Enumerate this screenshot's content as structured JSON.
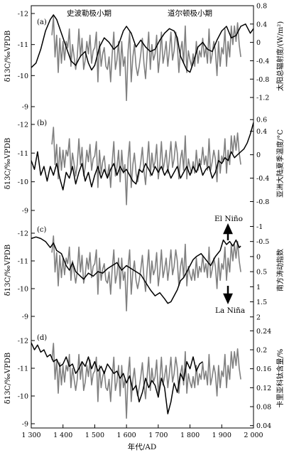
{
  "chart_data": {
    "type": "line",
    "xlabel": "年代/AD",
    "xlim": [
      1300,
      2000
    ],
    "xticks": [
      "1 300",
      "1 400",
      "1 500",
      "1 600",
      "1 700",
      "1 800",
      "1 900",
      "2 000"
    ],
    "grid": false,
    "colors": {
      "proxy": "#808080",
      "reference": "#000000"
    },
    "proxy_series": {
      "x": [
        1365,
        1370,
        1375,
        1380,
        1385,
        1390,
        1395,
        1400,
        1405,
        1410,
        1415,
        1420,
        1425,
        1430,
        1435,
        1440,
        1445,
        1450,
        1455,
        1460,
        1465,
        1470,
        1475,
        1480,
        1485,
        1490,
        1495,
        1500,
        1505,
        1510,
        1515,
        1520,
        1525,
        1530,
        1535,
        1540,
        1545,
        1550,
        1555,
        1560,
        1565,
        1570,
        1575,
        1580,
        1585,
        1590,
        1595,
        1600,
        1605,
        1610,
        1615,
        1620,
        1625,
        1630,
        1635,
        1640,
        1645,
        1650,
        1655,
        1660,
        1665,
        1670,
        1675,
        1680,
        1685,
        1690,
        1695,
        1700,
        1705,
        1710,
        1715,
        1720,
        1725,
        1730,
        1735,
        1740,
        1745,
        1750,
        1755,
        1760,
        1765,
        1770,
        1775,
        1780,
        1785,
        1790,
        1795,
        1800,
        1805,
        1810,
        1815,
        1820,
        1825,
        1830,
        1835,
        1840,
        1845,
        1850,
        1855,
        1860,
        1865,
        1870,
        1875,
        1880,
        1885,
        1890,
        1895,
        1900,
        1905,
        1910,
        1915,
        1920,
        1925,
        1930,
        1935,
        1940,
        1945,
        1950,
        1955,
        1960
      ],
      "y": [
        -11.3,
        -11.9,
        -10.6,
        -11.3,
        -10.1,
        -11.2,
        -10.4,
        -11.1,
        -10.5,
        -11.1,
        -10.9,
        -11.5,
        -10.3,
        -11.0,
        -10.6,
        -10.2,
        -10.6,
        -11.5,
        -10.6,
        -11.2,
        -10.2,
        -10.5,
        -11.1,
        -10.7,
        -11.3,
        -10.4,
        -10.8,
        -10.9,
        -11.4,
        -9.8,
        -11.1,
        -10.3,
        -10.7,
        -10.9,
        -10.3,
        -10.2,
        -10.6,
        -9.8,
        -10.7,
        -11.4,
        -10.2,
        -10.5,
        -11.1,
        -10.0,
        -11.1,
        -10.3,
        -10.6,
        -9.2,
        -10.8,
        -11.4,
        -9.8,
        -10.6,
        -11.0,
        -10.3,
        -10.0,
        -10.3,
        -10.7,
        -11.2,
        -10.4,
        -9.9,
        -10.7,
        -11.4,
        -10.2,
        -11.0,
        -10.5,
        -10.7,
        -11.3,
        -10.1,
        -10.6,
        -11.4,
        -10.4,
        -10.7,
        -11.1,
        -10.3,
        -10.8,
        -11.4,
        -10.5,
        -10.8,
        -11.4,
        -11.0,
        -10.1,
        -10.8,
        -11.1,
        -10.4,
        -11.6,
        -10.1,
        -10.8,
        -10.5,
        -10.3,
        -10.7,
        -10.3,
        -11.1,
        -10.4,
        -10.8,
        -10.6,
        -11.2,
        -10.6,
        -10.9,
        -10.4,
        -11.5,
        -10.4,
        -10.7,
        -11.1,
        -10.8,
        -10.0,
        -11.1,
        -10.3,
        -10.9,
        -10.7,
        -11.5,
        -10.3,
        -11.1,
        -10.6,
        -11.6,
        -11.0,
        -11.6,
        -11.1,
        -11.7,
        -11.0,
        -10.6
      ]
    },
    "panels": [
      {
        "label": "(a)",
        "left_axis": {
          "label": "δ13C/‰VPDB",
          "lim": [
            -8.6,
            -12.3
          ],
          "ticks": [
            "-9",
            "-10",
            "-11",
            "-12"
          ]
        },
        "right_axis": {
          "label": "太阳总辐射度/(W/m²)",
          "lim": [
            -1.4,
            0.8
          ],
          "ticks": [
            "0.8",
            "0.4",
            "0",
            "-0.4",
            "-0.8",
            "-1.2"
          ]
        },
        "annotations": [
          "史波勒极小期",
          "道尔顿极小期"
        ],
        "reference_series": {
          "x": [
            1300,
            1315,
            1330,
            1345,
            1360,
            1370,
            1380,
            1395,
            1410,
            1425,
            1440,
            1455,
            1470,
            1480,
            1490,
            1500,
            1515,
            1530,
            1545,
            1560,
            1575,
            1590,
            1600,
            1615,
            1630,
            1645,
            1660,
            1675,
            1690,
            1705,
            1720,
            1735,
            1750,
            1760,
            1770,
            1780,
            1790,
            1800,
            1810,
            1825,
            1840,
            1855,
            1870,
            1885,
            1900,
            1915,
            1930,
            1945,
            1960,
            1975,
            1990,
            2000
          ],
          "y": [
            -0.55,
            -0.45,
            -0.15,
            0.25,
            0.5,
            0.6,
            0.5,
            0.2,
            -0.1,
            -0.4,
            -0.5,
            -0.3,
            -0.2,
            -0.45,
            -0.6,
            -0.5,
            -0.1,
            0.1,
            0.0,
            -0.15,
            -0.05,
            0.25,
            0.35,
            0.2,
            -0.1,
            0.05,
            -0.1,
            -0.2,
            -0.15,
            0.05,
            0.2,
            0.3,
            0.25,
            0.1,
            -0.3,
            -0.45,
            -0.6,
            -0.65,
            -0.45,
            -0.1,
            0.0,
            -0.15,
            -0.2,
            0.05,
            0.25,
            0.35,
            0.1,
            0.15,
            0.35,
            0.4,
            0.2,
            0.3
          ]
        }
      },
      {
        "label": "(b)",
        "left_axis": {
          "label": "δ13C/‰VPDB",
          "lim": [
            -8.6,
            -12.3
          ],
          "ticks": [
            "-9",
            "-10",
            "-11",
            "-12"
          ]
        },
        "right_axis": {
          "label": "亚洲大陆夏季温度/°C",
          "lim": [
            -1.0,
            0.7
          ],
          "ticks": [
            "0.6",
            "0.4",
            "0",
            "-0.4",
            "-0.8"
          ]
        },
        "reference_series": {
          "x": [
            1300,
            1310,
            1320,
            1330,
            1340,
            1350,
            1360,
            1370,
            1380,
            1390,
            1400,
            1410,
            1420,
            1430,
            1440,
            1450,
            1460,
            1470,
            1480,
            1490,
            1500,
            1510,
            1520,
            1530,
            1540,
            1550,
            1560,
            1570,
            1580,
            1590,
            1600,
            1610,
            1620,
            1630,
            1640,
            1650,
            1660,
            1670,
            1680,
            1690,
            1700,
            1710,
            1720,
            1730,
            1740,
            1750,
            1760,
            1770,
            1780,
            1790,
            1800,
            1810,
            1820,
            1830,
            1840,
            1850,
            1860,
            1870,
            1880,
            1890,
            1900,
            1910,
            1920,
            1930,
            1940,
            1950,
            1960,
            1970,
            1980,
            1990,
            2000
          ],
          "y": [
            -0.1,
            -0.25,
            0.05,
            -0.35,
            -0.2,
            -0.45,
            -0.2,
            -0.35,
            -0.15,
            -0.4,
            -0.6,
            -0.3,
            -0.4,
            -0.2,
            -0.5,
            -0.3,
            -0.15,
            -0.45,
            -0.3,
            -0.55,
            -0.35,
            -0.2,
            -0.4,
            -0.25,
            -0.4,
            -0.25,
            -0.15,
            -0.35,
            -0.2,
            -0.3,
            -0.25,
            -0.35,
            -0.45,
            -0.5,
            -0.25,
            -0.3,
            -0.15,
            -0.25,
            -0.35,
            -0.2,
            -0.3,
            -0.2,
            -0.35,
            -0.25,
            -0.4,
            -0.3,
            -0.2,
            -0.4,
            -0.3,
            -0.2,
            -0.35,
            -0.2,
            -0.3,
            -0.15,
            -0.35,
            -0.25,
            -0.2,
            -0.4,
            -0.3,
            -0.1,
            -0.15,
            -0.05,
            -0.1,
            0.05,
            -0.05,
            0.0,
            0.05,
            0.1,
            0.2,
            0.35,
            0.55
          ]
        }
      },
      {
        "label": "(c)",
        "left_axis": {
          "label": "δ13C/‰VPDB",
          "lim": [
            -8.6,
            -12.3
          ],
          "ticks": [
            "-9",
            "-10",
            "-11",
            "-12"
          ]
        },
        "right_axis": {
          "label": "南方涛动指数",
          "lim": [
            2.1,
            -1.2
          ],
          "ticks": [
            "-1",
            "-0.5",
            "0",
            "0.5",
            "1",
            "1.5",
            "2"
          ]
        },
        "annotations": [
          "El Niño",
          "La Niña"
        ],
        "reference_series": {
          "x": [
            1300,
            1315,
            1330,
            1345,
            1360,
            1370,
            1380,
            1395,
            1410,
            1420,
            1430,
            1440,
            1450,
            1465,
            1480,
            1495,
            1510,
            1525,
            1540,
            1555,
            1570,
            1585,
            1600,
            1615,
            1630,
            1645,
            1660,
            1675,
            1690,
            1705,
            1720,
            1730,
            1740,
            1750,
            1760,
            1770,
            1780,
            1790,
            1800,
            1810,
            1820,
            1835,
            1850,
            1865,
            1880,
            1895,
            1905,
            1915,
            1925,
            1935,
            1945,
            1955,
            1960
          ],
          "y": [
            -0.6,
            -0.65,
            -0.6,
            -0.5,
            -0.3,
            -0.45,
            -0.2,
            -0.1,
            0.3,
            0.45,
            0.2,
            0.5,
            0.6,
            0.75,
            0.55,
            0.65,
            0.5,
            0.55,
            0.4,
            0.3,
            0.2,
            0.45,
            0.3,
            0.4,
            0.5,
            0.6,
            0.85,
            1.1,
            1.3,
            1.2,
            1.4,
            1.55,
            1.5,
            1.3,
            1.1,
            0.8,
            0.7,
            0.5,
            0.3,
            0.1,
            0.0,
            -0.1,
            0.1,
            0.3,
            0.0,
            -0.2,
            -0.55,
            -0.4,
            -0.5,
            -0.35,
            -0.55,
            -0.3,
            -0.35
          ]
        }
      },
      {
        "label": "(d)",
        "left_axis": {
          "label": "δ13C/‰VPDB",
          "lim": [
            -8.6,
            -12.3
          ],
          "ticks": [
            "-9",
            "-10",
            "-11",
            "-12"
          ]
        },
        "right_axis": {
          "label": "卡里亚科钛含量/%",
          "lim": [
            0.035,
            0.245
          ],
          "ticks": [
            "0.24",
            "0.2",
            "0.16",
            "0.12",
            "0.08",
            "0.04"
          ]
        },
        "reference_series": {
          "x": [
            1300,
            1310,
            1320,
            1330,
            1340,
            1350,
            1360,
            1370,
            1380,
            1390,
            1400,
            1410,
            1420,
            1430,
            1440,
            1450,
            1460,
            1470,
            1480,
            1490,
            1500,
            1510,
            1520,
            1530,
            1540,
            1550,
            1560,
            1570,
            1580,
            1590,
            1600,
            1610,
            1620,
            1630,
            1640,
            1650,
            1660,
            1670,
            1680,
            1690,
            1700,
            1710,
            1720,
            1730,
            1740,
            1750,
            1760,
            1770,
            1780,
            1790,
            1800,
            1810,
            1820,
            1830,
            1840
          ],
          "y": [
            0.215,
            0.2,
            0.21,
            0.195,
            0.2,
            0.185,
            0.19,
            0.175,
            0.18,
            0.165,
            0.17,
            0.185,
            0.165,
            0.17,
            0.15,
            0.16,
            0.175,
            0.165,
            0.185,
            0.16,
            0.175,
            0.155,
            0.165,
            0.15,
            0.17,
            0.16,
            0.15,
            0.155,
            0.14,
            0.15,
            0.13,
            0.145,
            0.115,
            0.125,
            0.09,
            0.11,
            0.14,
            0.12,
            0.135,
            0.125,
            0.1,
            0.14,
            0.12,
            0.065,
            0.09,
            0.13,
            0.11,
            0.15,
            0.135,
            0.175,
            0.16,
            0.185,
            0.155,
            0.17,
            0.175
          ]
        }
      }
    ]
  }
}
